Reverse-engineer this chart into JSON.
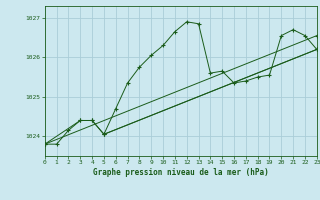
{
  "title": "Graphe pression niveau de la mer (hPa)",
  "bg_color": "#cce8ef",
  "grid_color": "#aacdd8",
  "line_color": "#1a5c1a",
  "xmin": 0,
  "xmax": 23,
  "ymin": 1023.5,
  "ymax": 1027.3,
  "yticks": [
    1024,
    1025,
    1026,
    1027
  ],
  "xticks": [
    0,
    1,
    2,
    3,
    4,
    5,
    6,
    7,
    8,
    9,
    10,
    11,
    12,
    13,
    14,
    15,
    16,
    17,
    18,
    19,
    20,
    21,
    22,
    23
  ],
  "series1": [
    [
      0,
      1023.8
    ],
    [
      1,
      1023.8
    ],
    [
      2,
      1024.15
    ],
    [
      3,
      1024.4
    ],
    [
      4,
      1024.4
    ],
    [
      5,
      1024.05
    ],
    [
      6,
      1024.7
    ],
    [
      7,
      1025.35
    ],
    [
      8,
      1025.75
    ],
    [
      9,
      1026.05
    ],
    [
      10,
      1026.3
    ],
    [
      11,
      1026.65
    ],
    [
      12,
      1026.9
    ],
    [
      13,
      1026.85
    ],
    [
      14,
      1025.6
    ],
    [
      15,
      1025.65
    ],
    [
      16,
      1025.35
    ],
    [
      17,
      1025.4
    ],
    [
      18,
      1025.5
    ],
    [
      19,
      1025.55
    ],
    [
      20,
      1026.55
    ],
    [
      21,
      1026.7
    ],
    [
      22,
      1026.55
    ],
    [
      23,
      1026.2
    ]
  ],
  "series2": [
    [
      0,
      1023.8
    ],
    [
      3,
      1024.4
    ],
    [
      4,
      1024.4
    ],
    [
      5,
      1024.05
    ],
    [
      23,
      1026.2
    ]
  ],
  "series3": [
    [
      0,
      1023.8
    ],
    [
      23,
      1026.55
    ]
  ],
  "series4": [
    [
      5,
      1024.05
    ],
    [
      23,
      1026.2
    ]
  ]
}
